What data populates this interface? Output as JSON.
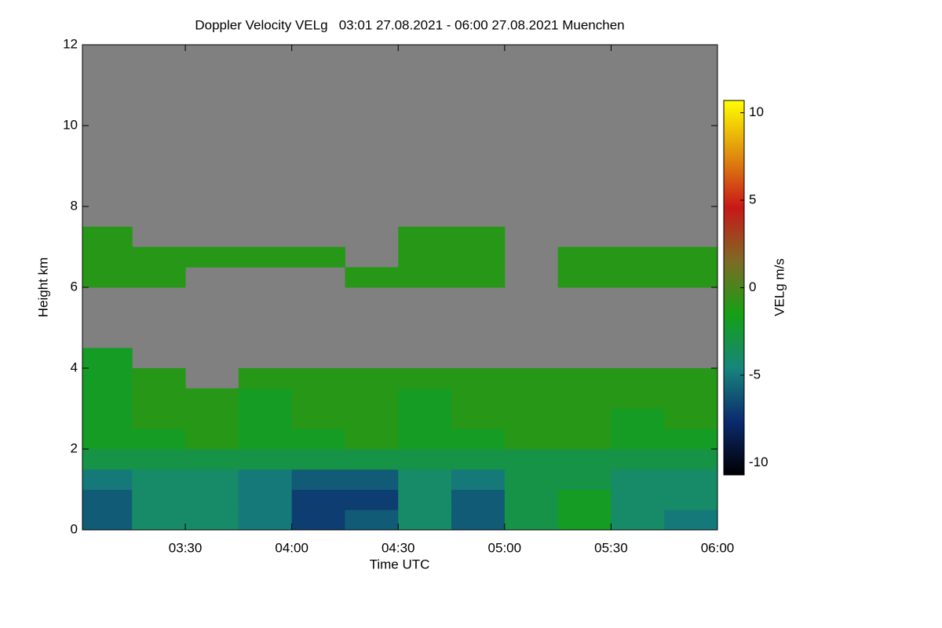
{
  "chart_data": {
    "type": "heatmap",
    "title": "Doppler Velocity VELg   03:01 27.08.2021 - 06:00 27.08.2021 Muenchen",
    "xlabel": "Time UTC",
    "ylabel": "Height km",
    "colorbar_label": "VELg m/s",
    "xlim": [
      3.0167,
      6.0
    ],
    "xticks": [
      {
        "value": 3.5,
        "label": "03:30"
      },
      {
        "value": 4.0,
        "label": "04:00"
      },
      {
        "value": 4.5,
        "label": "04:30"
      },
      {
        "value": 5.0,
        "label": "05:00"
      },
      {
        "value": 5.5,
        "label": "05:30"
      },
      {
        "value": 6.0,
        "label": "06:00"
      }
    ],
    "ylim": [
      0,
      12
    ],
    "yticks": [
      0,
      2,
      4,
      6,
      8,
      10,
      12
    ],
    "zlim": [
      -10.7,
      10.7
    ],
    "zticks": [
      -10,
      -5,
      0,
      5,
      10
    ],
    "colormap": [
      "#000000",
      "#0b2a6e",
      "#17857c",
      "#15a015",
      "#7e6a24",
      "#c81818",
      "#e0900e",
      "#ffff00"
    ],
    "nodata_color": "#808080",
    "x_edges": [
      3.0167,
      3.25,
      3.5,
      3.75,
      4.0,
      4.25,
      4.5,
      4.75,
      5.0,
      5.25,
      5.5,
      5.75,
      6.0
    ],
    "y_edges": [
      0,
      0.5,
      1,
      1.5,
      2,
      2.5,
      3,
      3.5,
      4,
      4.5,
      5,
      5.5,
      6,
      6.5,
      7,
      7.5
    ],
    "z": [
      [
        -6,
        -4,
        -4,
        -5,
        -7,
        -6,
        -4,
        -6,
        -3,
        -2,
        -4,
        -5
      ],
      [
        -6,
        -4,
        -4,
        -5,
        -7,
        -7,
        -4,
        -6,
        -3,
        -2,
        -4,
        -4
      ],
      [
        -5,
        -4,
        -4,
        -5,
        -6,
        -6,
        -4,
        -5,
        -3,
        -3,
        -4,
        -4
      ],
      [
        -3,
        -3,
        -3,
        -3,
        -3,
        -3,
        -3,
        -3,
        -3,
        -3,
        -3,
        -3
      ],
      [
        -2,
        -2,
        -1,
        -2,
        -2,
        -1,
        -2,
        -2,
        -1,
        -1,
        -2,
        -2
      ],
      [
        -2,
        -1,
        -1,
        -2,
        -1,
        -1,
        -2,
        -1,
        -1,
        -1,
        -2,
        -1
      ],
      [
        -2,
        -1,
        -1,
        -2,
        -1,
        -1,
        -2,
        -1,
        -1,
        -1,
        -1,
        -1
      ],
      [
        -2,
        -1,
        null,
        -1,
        -1,
        -1,
        -1,
        -1,
        -1,
        -1,
        -1,
        -1
      ],
      [
        -2,
        null,
        null,
        null,
        null,
        null,
        null,
        null,
        null,
        null,
        null,
        null
      ],
      [
        null,
        null,
        null,
        null,
        null,
        null,
        null,
        null,
        null,
        null,
        null,
        null
      ],
      [
        null,
        null,
        null,
        null,
        null,
        null,
        null,
        null,
        null,
        null,
        null,
        null
      ],
      [
        null,
        null,
        null,
        null,
        null,
        null,
        null,
        null,
        null,
        null,
        null,
        null
      ],
      [
        -1,
        -1,
        null,
        null,
        null,
        -1,
        -1,
        -1,
        null,
        -1,
        -1,
        -1
      ],
      [
        -1,
        -1,
        -1,
        -1,
        -1,
        null,
        -1,
        -1,
        null,
        -1,
        -1,
        -1
      ],
      [
        -1,
        null,
        null,
        null,
        null,
        null,
        -1,
        -1,
        null,
        null,
        null,
        null
      ]
    ]
  }
}
